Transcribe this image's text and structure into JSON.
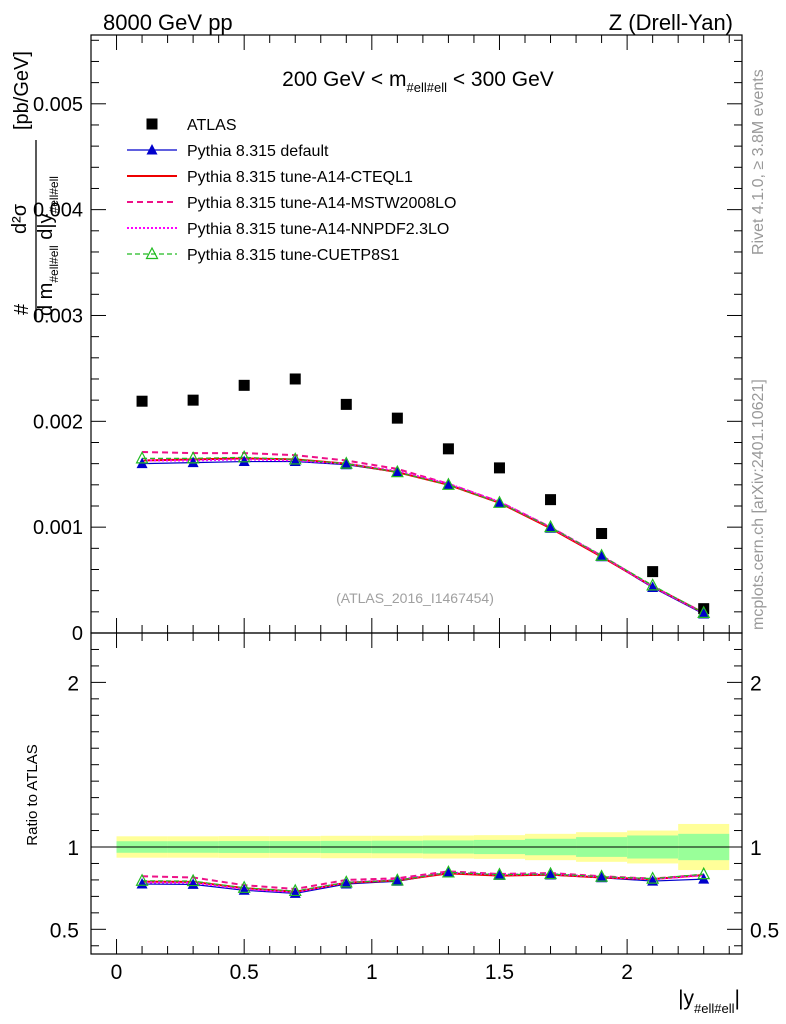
{
  "header": {
    "left": "8000 GeV pp",
    "right": "Z (Drell-Yan)"
  },
  "side_text": {
    "rivet": "Rivet 4.1.0, ≥ 3.8M events",
    "mcplots": "mcplots.cern.ch [arXiv:2401.10621]"
  },
  "colors": {
    "atlas": "#000000",
    "default": "#0000cc",
    "cteql1": "#ee0000",
    "mstw": "#ee1188",
    "nnpdf": "#ff00ff",
    "cuetp8s1": "#22bb22",
    "band_outer": "#ffff99",
    "band_inner": "#99ff99"
  },
  "chart_data": [
    {
      "type": "scatter",
      "name": "main",
      "title": "200 GeV < m_{#ell#ell} < 300 GeV",
      "title_parts": {
        "pre": "200 GeV < m",
        "sub": "#ell#ell",
        "post": " < 300 GeV"
      },
      "ylabel_parts": {
        "num": "d²σ",
        "den_pre": "d m",
        "den_sub": "#ell#ell",
        "den_mid": " d|y",
        "den_sub2": "#ell#ell",
        "unit": "[pb/GeV]"
      },
      "watermark": "(ATLAS_2016_I1467454)",
      "xlim": [
        -0.1,
        2.45
      ],
      "ylim": [
        0,
        0.00565
      ],
      "yticks": [
        {
          "v": 0,
          "label": "0"
        },
        {
          "v": 0.001,
          "label": "0.001"
        },
        {
          "v": 0.002,
          "label": "0.002"
        },
        {
          "v": 0.003,
          "label": "0.003"
        },
        {
          "v": 0.004,
          "label": "0.004"
        },
        {
          "v": 0.005,
          "label": "0.005"
        }
      ],
      "x": [
        0.1,
        0.3,
        0.5,
        0.7,
        0.9,
        1.1,
        1.3,
        1.5,
        1.7,
        1.9,
        2.1,
        2.3
      ],
      "series": [
        {
          "name": "ATLAS",
          "key": "atlas",
          "values": [
            0.00219,
            0.0022,
            0.00234,
            0.0024,
            0.00216,
            0.00203,
            0.00174,
            0.00156,
            0.00126,
            0.00094,
            0.00058,
            0.00023
          ]
        },
        {
          "name": "Pythia 8.315 default",
          "key": "default",
          "values": [
            0.0016,
            0.00161,
            0.00162,
            0.00162,
            0.00159,
            0.00152,
            0.0014,
            0.00123,
            0.00099,
            0.00072,
            0.00043,
            0.00018
          ]
        },
        {
          "name": "Pythia 8.315 tune-A14-CTEQL1",
          "key": "cteql1",
          "values": [
            0.00163,
            0.00164,
            0.00165,
            0.00164,
            0.0016,
            0.00152,
            0.0014,
            0.00123,
            0.00099,
            0.00072,
            0.00044,
            0.00019
          ]
        },
        {
          "name": "Pythia 8.315 tune-A14-MSTW2008LO",
          "key": "mstw",
          "values": [
            0.00171,
            0.0017,
            0.0017,
            0.00168,
            0.00163,
            0.00155,
            0.00141,
            0.00124,
            0.001,
            0.00073,
            0.00044,
            0.00019
          ]
        },
        {
          "name": "Pythia 8.315 tune-A14-NNPDF2.3LO",
          "key": "nnpdf",
          "values": [
            0.00163,
            0.00163,
            0.00164,
            0.00163,
            0.0016,
            0.00153,
            0.00141,
            0.00124,
            0.001,
            0.00073,
            0.00044,
            0.00019
          ]
        },
        {
          "name": "Pythia 8.315 tune-CUETP8S1",
          "key": "cuetp8s1",
          "values": [
            0.00165,
            0.00165,
            0.00166,
            0.00164,
            0.0016,
            0.00152,
            0.0014,
            0.00123,
            0.001,
            0.00073,
            0.00045,
            0.00019
          ]
        }
      ]
    },
    {
      "type": "line",
      "name": "ratio",
      "ylabel": "Ratio to ATLAS",
      "xlabel_parts": {
        "pre": "|y",
        "sub": "#ell#ell",
        "post": "|"
      },
      "xlim": [
        -0.1,
        2.45
      ],
      "ylim": [
        0.35,
        2.3
      ],
      "xticks": [
        {
          "v": 0,
          "label": "0"
        },
        {
          "v": 0.5,
          "label": "0.5"
        },
        {
          "v": 1,
          "label": "1"
        },
        {
          "v": 1.5,
          "label": "1.5"
        },
        {
          "v": 2,
          "label": "2"
        }
      ],
      "yticks": [
        {
          "v": 0.5,
          "label": "0.5"
        },
        {
          "v": 1,
          "label": "1"
        },
        {
          "v": 2,
          "label": "2"
        }
      ],
      "bins": [
        [
          0.0,
          0.2
        ],
        [
          0.2,
          0.4
        ],
        [
          0.4,
          0.6
        ],
        [
          0.6,
          0.8
        ],
        [
          0.8,
          1.0
        ],
        [
          1.0,
          1.2
        ],
        [
          1.2,
          1.4
        ],
        [
          1.4,
          1.6
        ],
        [
          1.6,
          1.8
        ],
        [
          1.8,
          2.0
        ],
        [
          2.0,
          2.2
        ],
        [
          2.2,
          2.4
        ]
      ],
      "band_outer": [
        0.065,
        0.065,
        0.066,
        0.066,
        0.068,
        0.068,
        0.07,
        0.072,
        0.08,
        0.09,
        0.1,
        0.14
      ],
      "band_inner": [
        0.035,
        0.035,
        0.036,
        0.036,
        0.037,
        0.038,
        0.04,
        0.043,
        0.05,
        0.06,
        0.07,
        0.08
      ],
      "x": [
        0.1,
        0.3,
        0.5,
        0.7,
        0.9,
        1.1,
        1.3,
        1.5,
        1.7,
        1.9,
        2.1,
        2.3
      ],
      "series": [
        {
          "name": "Pythia 8.315 default",
          "key": "default",
          "values": [
            0.775,
            0.773,
            0.737,
            0.718,
            0.775,
            0.792,
            0.843,
            0.828,
            0.83,
            0.813,
            0.793,
            0.805
          ]
        },
        {
          "name": "Pythia 8.315 tune-A14-CTEQL1",
          "key": "cteql1",
          "values": [
            0.79,
            0.788,
            0.75,
            0.728,
            0.783,
            0.797,
            0.84,
            0.826,
            0.832,
            0.815,
            0.805,
            0.83
          ]
        },
        {
          "name": "Pythia 8.315 tune-A14-MSTW2008LO",
          "key": "mstw",
          "values": [
            0.822,
            0.815,
            0.768,
            0.745,
            0.8,
            0.81,
            0.852,
            0.836,
            0.842,
            0.822,
            0.808,
            0.832
          ]
        },
        {
          "name": "Pythia 8.315 tune-A14-NNPDF2.3LO",
          "key": "nnpdf",
          "values": [
            0.785,
            0.783,
            0.745,
            0.725,
            0.785,
            0.8,
            0.845,
            0.832,
            0.836,
            0.818,
            0.805,
            0.828
          ]
        },
        {
          "name": "Pythia 8.315 tune-CUETP8S1",
          "key": "cuetp8s1",
          "values": [
            0.795,
            0.793,
            0.752,
            0.733,
            0.785,
            0.797,
            0.846,
            0.832,
            0.836,
            0.82,
            0.808,
            0.835
          ]
        }
      ]
    }
  ]
}
